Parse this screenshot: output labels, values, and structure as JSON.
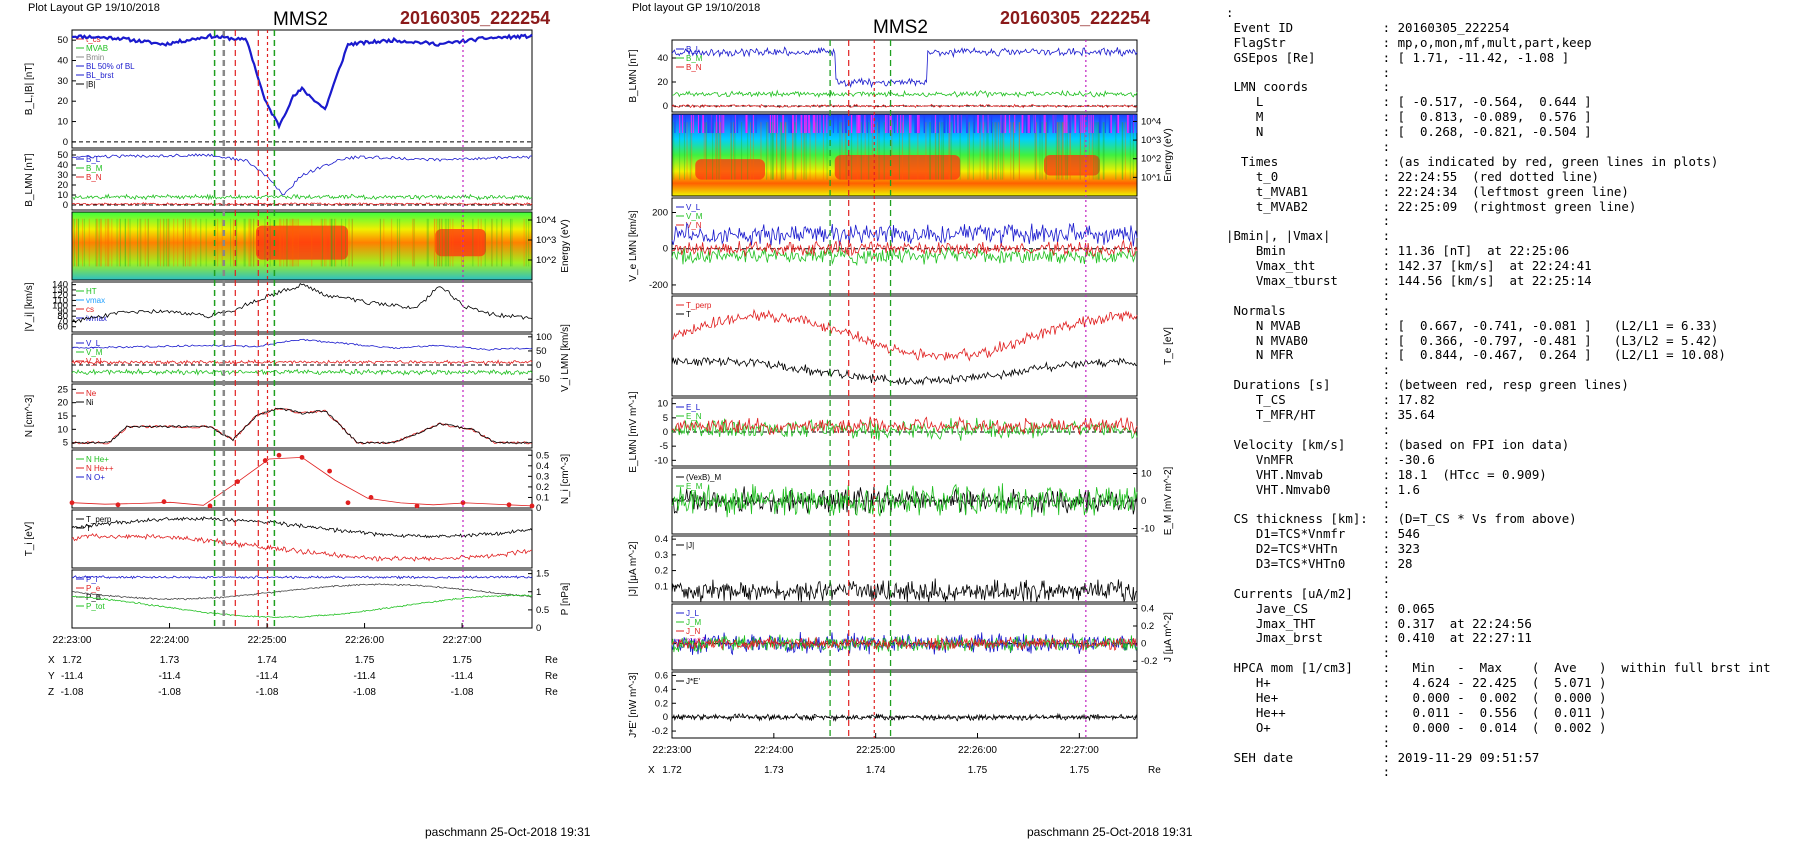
{
  "left_figure": {
    "header": "Plot Layout GP 19/10/2018",
    "spacecraft": "MMS2",
    "event": "20160305_222254",
    "footer": "paschmann 25-Oct-2018 19:31",
    "time_ticks": [
      "22:23:00",
      "22:24:00",
      "22:25:00",
      "22:26:00",
      "22:27:00"
    ],
    "coords": [
      {
        "label": "X",
        "values": [
          "1.72",
          "1.73",
          "1.74",
          "1.75",
          "1.75"
        ],
        "unit": "Re"
      },
      {
        "label": "Y",
        "values": [
          "-11.4",
          "-11.4",
          "-11.4",
          "-11.4",
          "-11.4"
        ],
        "unit": "Re"
      },
      {
        "label": "Z",
        "values": [
          "-1.08",
          "-1.08",
          "-1.08",
          "-1.08",
          "-1.08"
        ],
        "unit": "Re"
      }
    ]
  },
  "right_figure": {
    "header": "Plot layout GP 19/10/2018",
    "spacecraft": "MMS2",
    "event": "20160305_222254",
    "footer": "paschmann 25-Oct-2018 19:31",
    "time_ticks": [
      "22:23:00",
      "22:24:00",
      "22:25:00",
      "22:26:00",
      "22:27:00"
    ],
    "coords": [
      {
        "label": "X",
        "values": [
          "1.72",
          "1.73",
          "1.74",
          "1.75",
          "1.75"
        ],
        "unit": "Re"
      },
      {
        "label": "Y",
        "values": [
          "-11.4",
          "-11.4",
          "-11.4",
          "-11.4",
          "-11.4"
        ],
        "unit": "Re"
      },
      {
        "label": "Z",
        "values": [
          "-1.08",
          "-1.08",
          "-1.08",
          "-1.08",
          "-1.08"
        ],
        "unit": "Re"
      }
    ]
  },
  "summary": [
    ":",
    " Event ID            : 20160305_222254",
    " FlagStr             : mp,o,mon,mf,mult,part,keep",
    " GSEpos [Re]         : [ 1.71, -11.42, -1.08 ]",
    "                     :",
    " LMN coords          :",
    "    L                : [ -0.517, -0.564,  0.644 ]",
    "    M                : [  0.813, -0.089,  0.576 ]",
    "    N                : [  0.268, -0.821, -0.504 ]",
    "                     :",
    "  Times              : (as indicated by red, green lines in plots)",
    "    t_0              : 22:24:55  (red dotted line)",
    "    t_MVAB1          : 22:24:34  (leftmost green line)",
    "    t_MVAB2          : 22:25:09  (rightmost green line)",
    "                     :",
    "|Bmin|, |Vmax|       :",
    "    Bmin             : 11.36 [nT]  at 22:25:06",
    "    Vmax_tht         : 142.37 [km/s]  at 22:24:41",
    "    Vmax_tburst      : 144.56 [km/s]  at 22:25:14",
    "                     :",
    " Normals             :",
    "    N MVAB           : [  0.667, -0.741, -0.081 ]   (L2/L1 = 6.33)",
    "    N MVAB0          : [  0.366, -0.797, -0.481 ]   (L3/L2 = 5.42)",
    "    N MFR            : [  0.844, -0.467,  0.264 ]   (L2/L1 = 10.08)",
    "                     :",
    " Durations [s]       : (between red, resp green lines)",
    "    T_CS             : 17.82",
    "    T_MFR/HT         : 35.64",
    "                     :",
    " Velocity [km/s]     : (based on FPI ion data)",
    "    VnMFR            : -30.6",
    "    VHT.Nmvab        : 18.1  (HTcc = 0.909)",
    "    VHT.Nmvab0       : 1.6",
    "                     :",
    " CS thickness [km]:  : (D=T_CS * Vs from above)",
    "    D1=TCS*Vnmfr     : 546",
    "    D2=TCS*VHTn      : 323",
    "    D3=TCS*VHTn0     : 28",
    "                     :",
    " Currents [uA/m2]    :",
    "    Jave_CS          : 0.065",
    "    Jmax_THT         : 0.317  at 22:24:56",
    "    Jmax_brst        : 0.410  at 22:27:11",
    "                     :",
    " HPCA mom [1/cm3]    :   Min   -  Max    (  Ave   )  within full brst int",
    "    H+               :   4.624 - 22.425  (  5.071 )",
    "    He+              :   0.000 -  0.002  (  0.000 )",
    "    He++             :   0.011 -  0.556  (  0.011 )",
    "    O+               :   0.000 -  0.014  (  0.002 )",
    "                     :",
    " SEH date            : 2019-11-29 09:51:57",
    "                     :"
  ],
  "chart_data": [
    {
      "type": "line",
      "figure": "left",
      "time_range": [
        "22:23:00",
        "22:27:45"
      ],
      "event_lines": {
        "red_dotted_t0": "22:24:55",
        "green_MVAB1": "22:24:34",
        "green_MVAB2": "22:25:09",
        "magenta": "22:27:11"
      },
      "panels": [
        {
          "ylabel": "B_L,|B| [nT]",
          "ylim": [
            -3,
            55
          ],
          "yticks": [
            0,
            10,
            20,
            30,
            40,
            50
          ],
          "legend": [
            "t_cs",
            "MVAB",
            "Bmin",
            "BL 50% of BL",
            "BL_brst",
            "|B|"
          ],
          "series": [
            {
              "name": "|B|",
              "color": "#1a1acd",
              "x": [
                0,
                0.1,
                0.2,
                0.3,
                0.38,
                0.42,
                0.45,
                0.48,
                0.5,
                0.55,
                0.6,
                0.7,
                0.8,
                0.9,
                1.0
              ],
              "values": [
                52,
                51,
                48,
                52,
                50,
                20,
                8,
                22,
                26,
                16,
                48,
                50,
                48,
                51,
                52
              ]
            }
          ]
        },
        {
          "ylabel": "B_LMN [nT]",
          "ylim": [
            -5,
            55
          ],
          "yticks": [
            0,
            10,
            20,
            30,
            40,
            50
          ],
          "legend": [
            "B_L",
            "B_M",
            "B_N"
          ],
          "series": [
            {
              "name": "B_L",
              "color": "#1a1acd",
              "x": [
                0,
                0.3,
                0.38,
                0.42,
                0.46,
                0.5,
                0.58,
                0.62,
                0.7,
                0.8,
                0.9,
                1.0
              ],
              "values": [
                48,
                50,
                44,
                30,
                10,
                30,
                45,
                48,
                47,
                45,
                47,
                48
              ]
            }
          ]
        },
        {
          "ylabel": "Energy (eV)",
          "type": "heatmap",
          "yticks": [
            "10^2",
            "10^3",
            "10^4"
          ]
        },
        {
          "ylabel": "|V_i| [km/s]",
          "ylim": [
            50,
            145
          ],
          "yticks": [
            60,
            70,
            80,
            90,
            100,
            110,
            120,
            130,
            140
          ],
          "legend": [
            "HT",
            "vmax",
            "cs",
            "ivmax"
          ],
          "series": [
            {
              "name": "|V_i|",
              "color": "#000000",
              "x": [
                0,
                0.1,
                0.2,
                0.3,
                0.36,
                0.4,
                0.45,
                0.5,
                0.55,
                0.65,
                0.75,
                0.8,
                0.85,
                0.9,
                1.0
              ],
              "values": [
                70,
                85,
                90,
                80,
                95,
                110,
                125,
                140,
                120,
                105,
                95,
                140,
                100,
                85,
                75
              ]
            }
          ]
        },
        {
          "ylabel": "V_i LMN [km/s]",
          "ylim": [
            -60,
            110
          ],
          "yticks": [
            -50,
            0,
            50,
            100
          ],
          "legend": [
            "V_L",
            "V_M",
            "V_N"
          ],
          "series": [
            {
              "name": "V_L",
              "color": "#1a1acd",
              "x": [
                0,
                0.3,
                0.4,
                0.45,
                0.5,
                0.6,
                0.7,
                0.8,
                0.9,
                1.0
              ],
              "values": [
                60,
                70,
                65,
                80,
                90,
                75,
                60,
                70,
                55,
                60
              ]
            }
          ]
        },
        {
          "ylabel": "N [cm^-3]",
          "ylim": [
            3,
            27
          ],
          "yticks": [
            5,
            10,
            15,
            20,
            25
          ],
          "legend": [
            "Ne",
            "Ni"
          ],
          "series": [
            {
              "name": "Ni",
              "color": "#000000",
              "x": [
                0,
                0.08,
                0.12,
                0.3,
                0.35,
                0.4,
                0.45,
                0.5,
                0.55,
                0.58,
                0.62,
                0.7,
                0.8,
                0.87,
                0.92,
                1.0
              ],
              "values": [
                5,
                5,
                11,
                11,
                6,
                15,
                18,
                16,
                17,
                12,
                5,
                5,
                12,
                10,
                5,
                5
              ]
            }
          ]
        },
        {
          "ylabel": "N_i [cm^-3]",
          "ylim": [
            0,
            0.55
          ],
          "yticks": [
            0,
            0.1,
            0.2,
            0.3,
            0.4,
            0.5
          ],
          "legend": [
            "N He+",
            "N He++",
            "N O+"
          ],
          "series": [
            {
              "name": "N He++",
              "color": "#e02020",
              "x": [
                0,
                0.1,
                0.2,
                0.3,
                0.36,
                0.42,
                0.45,
                0.5,
                0.56,
                0.6,
                0.65,
                0.75,
                0.85,
                0.95,
                1.0
              ],
              "values": [
                0.05,
                0.03,
                0.06,
                0.02,
                0.25,
                0.45,
                0.5,
                0.48,
                0.35,
                0.05,
                0.1,
                0.02,
                0.05,
                0.03,
                0.02
              ]
            }
          ]
        },
        {
          "ylabel": "T_i [eV]",
          "legend": [
            "T_perp",
            "T"
          ],
          "series": []
        },
        {
          "ylabel": "P [nPa]",
          "ylim": [
            0,
            1.6
          ],
          "yticks": [
            0,
            0.5,
            1.0,
            1.5
          ],
          "legend": [
            "P_i",
            "P_e",
            "P_B",
            "P_tot"
          ],
          "series": []
        }
      ]
    },
    {
      "type": "line",
      "figure": "right",
      "time_range": [
        "22:23:00",
        "22:27:45"
      ],
      "panels": [
        {
          "ylabel": "B_LMN [nT]",
          "ylim": [
            -5,
            55
          ],
          "yticks": [
            0,
            20,
            40
          ],
          "legend": [
            "B_L",
            "B_M",
            "B_N"
          ]
        },
        {
          "ylabel": "Energy (eV)",
          "type": "heatmap",
          "yticks": [
            "10^1",
            "10^2",
            "10^3",
            "10^4"
          ]
        },
        {
          "ylabel": "V_e LMN [km/s]",
          "ylim": [
            -250,
            280
          ],
          "yticks": [
            -200,
            0,
            200
          ],
          "legend": [
            "V_L",
            "V_M",
            "V_N"
          ]
        },
        {
          "ylabel": "T_e [eV]",
          "legend": [
            "T_perp",
            "T"
          ]
        },
        {
          "ylabel": "E_LMN [mV m^-1]",
          "ylim": [
            -12,
            12
          ],
          "yticks": [
            -10,
            -5,
            0,
            5,
            10
          ],
          "legend": [
            "E_L",
            "E_N"
          ]
        },
        {
          "ylabel": "E_M [mV m^-2]",
          "ylim": [
            -12,
            12
          ],
          "yticks": [
            -10,
            0,
            10
          ],
          "legend": [
            "(VexB)_M",
            "E_M"
          ]
        },
        {
          "ylabel": "|J| [μA m^-2]",
          "ylim": [
            0,
            0.42
          ],
          "yticks": [
            0.1,
            0.2,
            0.3,
            0.4
          ],
          "legend": [
            "|J|"
          ]
        },
        {
          "ylabel": "J [μA m^-2]",
          "ylim": [
            -0.3,
            0.45
          ],
          "yticks": [
            -0.2,
            0,
            0.2,
            0.4
          ],
          "legend": [
            "J_L",
            "J_M",
            "J_N",
            "maxJ"
          ]
        },
        {
          "ylabel": "J*E' [nW m^-3]",
          "ylim": [
            -0.3,
            0.65
          ],
          "yticks": [
            -0.2,
            0,
            0.2,
            0.4,
            0.6
          ],
          "legend": [
            "J*E'"
          ]
        }
      ]
    }
  ]
}
